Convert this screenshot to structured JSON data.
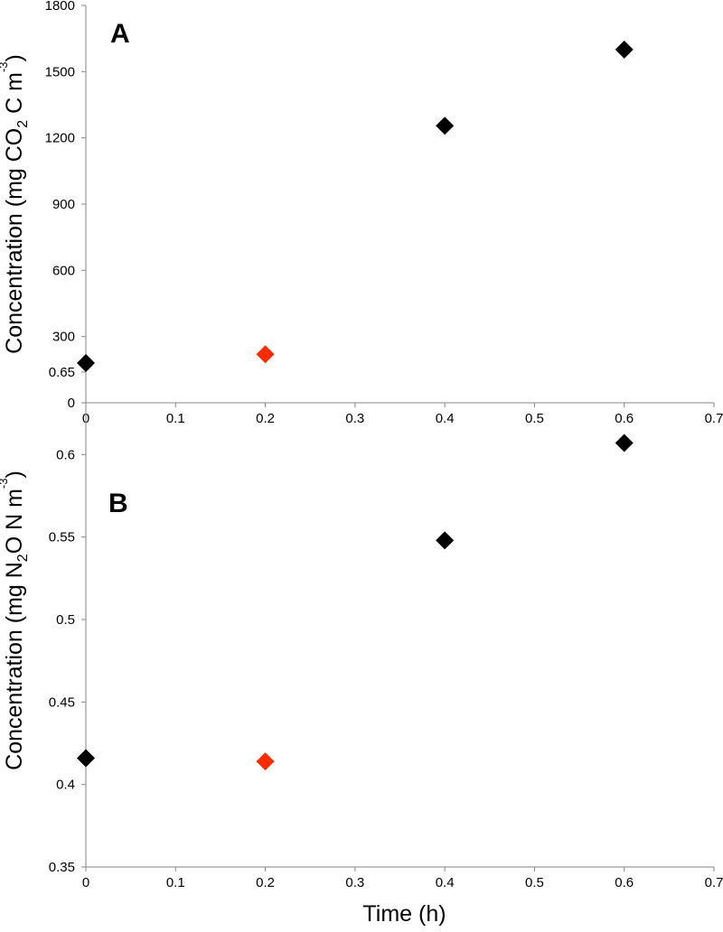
{
  "chart_data": [
    {
      "type": "scatter",
      "panel_label": "A",
      "title": "",
      "xlabel": "",
      "ylabel_parts": [
        {
          "text": "Concentration (mg CO",
          "style": "normal"
        },
        {
          "text": "2",
          "style": "sub"
        },
        {
          "text": " C  m",
          "style": "normal"
        },
        {
          "text": "-3",
          "style": "sup"
        },
        {
          "text": ")",
          "style": "normal"
        }
      ],
      "xlim": [
        0,
        0.7
      ],
      "ylim": [
        0,
        1800
      ],
      "x_ticks": [
        0,
        0.1,
        0.2,
        0.3,
        0.4,
        0.5,
        0.6,
        0.7
      ],
      "y_ticks": [
        0,
        300,
        600,
        900,
        1200,
        1500,
        1800
      ],
      "grid": false,
      "points": [
        {
          "x": 0,
          "y": 180,
          "color": "#000000"
        },
        {
          "x": 0.2,
          "y": 220,
          "color": "#ff2a00"
        },
        {
          "x": 0.4,
          "y": 1255,
          "color": "#000000"
        },
        {
          "x": 0.6,
          "y": 1600,
          "color": "#000000"
        }
      ]
    },
    {
      "type": "scatter",
      "panel_label": "B",
      "title": "",
      "xlabel": "Time (h)",
      "ylabel_parts": [
        {
          "text": "Concentration (mg N",
          "style": "normal"
        },
        {
          "text": "2",
          "style": "sub"
        },
        {
          "text": "O N m",
          "style": "normal"
        },
        {
          "text": "-3",
          "style": "sup"
        },
        {
          "text": ")",
          "style": "normal"
        }
      ],
      "xlim": [
        0,
        0.7
      ],
      "ylim": [
        0.35,
        0.65
      ],
      "x_ticks": [
        0,
        0.1,
        0.2,
        0.3,
        0.4,
        0.5,
        0.6,
        0.7
      ],
      "y_ticks": [
        0.35,
        0.4,
        0.45,
        0.5,
        0.55,
        0.6,
        0.65
      ],
      "grid": false,
      "points": [
        {
          "x": 0,
          "y": 0.416,
          "color": "#000000"
        },
        {
          "x": 0.2,
          "y": 0.414,
          "color": "#ff2a00"
        },
        {
          "x": 0.4,
          "y": 0.548,
          "color": "#000000"
        },
        {
          "x": 0.6,
          "y": 0.607,
          "color": "#000000"
        }
      ]
    }
  ]
}
